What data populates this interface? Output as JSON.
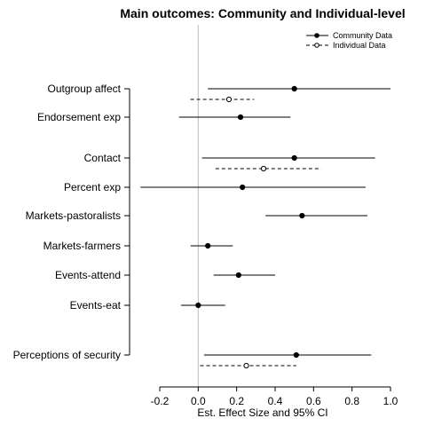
{
  "chart_data": {
    "type": "forest",
    "title": "Main outcomes: Community and Individual-level",
    "xlabel": "Est. Effect Size and 95% CI",
    "xlim": [
      -0.2,
      1.0
    ],
    "xticks": [
      "-0.2",
      "0.0",
      "0.2",
      "0.4",
      "0.6",
      "0.8",
      "1.0"
    ],
    "reference_line": 0,
    "legend": {
      "placement": "top-right",
      "entries": [
        {
          "label": "Community Data",
          "style": "solid",
          "marker": "filled-circle"
        },
        {
          "label": "Individual Data",
          "style": "dashed",
          "marker": "open-circle"
        }
      ]
    },
    "categories": [
      "Outgroup affect",
      "Endorsement exp",
      "Contact",
      "Percent exp",
      "Markets-pastoralists",
      "Markets-farmers",
      "Events-attend",
      "Events-eat",
      "Perceptions of security"
    ],
    "series": [
      {
        "name": "Community Data",
        "estimates": [
          0.5,
          0.22,
          0.5,
          0.23,
          0.54,
          0.05,
          0.21,
          0.0,
          0.51
        ],
        "ci_low": [
          0.05,
          -0.1,
          0.02,
          -0.3,
          0.35,
          -0.04,
          0.08,
          -0.09,
          0.03
        ],
        "ci_high": [
          1.0,
          0.48,
          0.92,
          0.87,
          0.88,
          0.18,
          0.4,
          0.14,
          0.9
        ]
      },
      {
        "name": "Individual Data",
        "categories": [
          "Outgroup affect",
          "Contact",
          "Perceptions of security"
        ],
        "estimates": [
          0.16,
          0.34,
          0.25
        ],
        "ci_low": [
          -0.04,
          0.09,
          0.01
        ],
        "ci_high": [
          0.29,
          0.64,
          0.51
        ]
      }
    ]
  }
}
